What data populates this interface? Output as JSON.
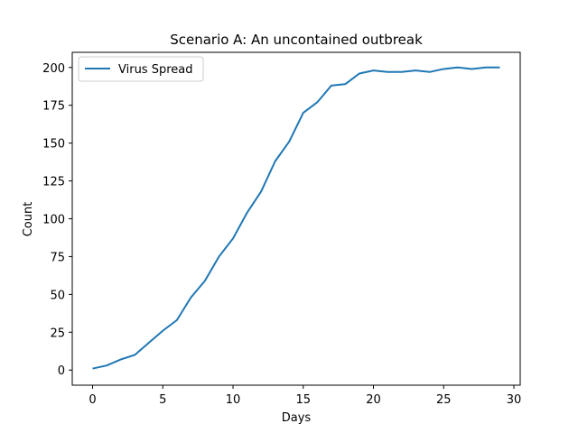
{
  "chart_data": {
    "type": "line",
    "title": "Scenario A: An uncontained outbreak",
    "xlabel": "Days",
    "ylabel": "Count",
    "xlim": [
      -1.45,
      30.45
    ],
    "ylim": [
      -10,
      210
    ],
    "xticks": [
      0,
      5,
      10,
      15,
      20,
      25,
      30
    ],
    "yticks": [
      0,
      25,
      50,
      75,
      100,
      125,
      150,
      175,
      200
    ],
    "grid": false,
    "legend_position": "top-left",
    "series": [
      {
        "name": "Virus Spread",
        "color": "#1f77b4",
        "x": [
          0,
          1,
          2,
          3,
          4,
          5,
          6,
          7,
          8,
          9,
          10,
          11,
          12,
          13,
          14,
          15,
          16,
          17,
          18,
          19,
          20,
          21,
          22,
          23,
          24,
          25,
          26,
          27,
          28,
          29
        ],
        "y": [
          1,
          3,
          7,
          10,
          18,
          26,
          33,
          48,
          59,
          75,
          87,
          104,
          118,
          138,
          151,
          170,
          177,
          188,
          189,
          196,
          198,
          197,
          197,
          198,
          197,
          199,
          200,
          199,
          200,
          200
        ]
      }
    ]
  }
}
